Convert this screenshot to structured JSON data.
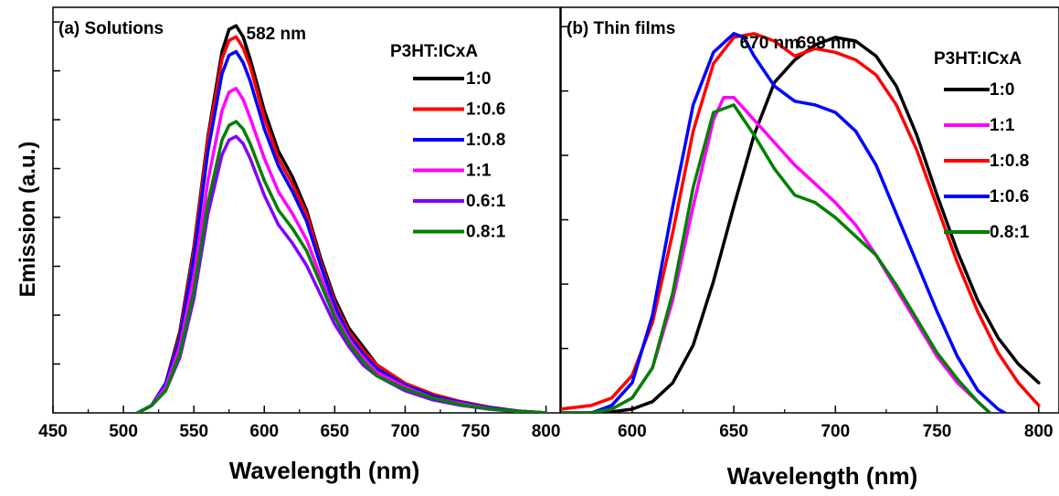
{
  "figure": {
    "ylabel": "Emission (a.u.)"
  },
  "chart_data": [
    {
      "type": "line",
      "title": "(a) Solutions",
      "xlabel": "Wavelength (nm)",
      "ylabel": "Emission (a.u.)",
      "xlim": [
        450,
        810
      ],
      "ylim": [
        0,
        1.1
      ],
      "xticks": [
        450,
        500,
        550,
        600,
        650,
        700,
        750,
        800
      ],
      "y_tick_labels_shown": false,
      "annotations": [
        {
          "text": "582 nm",
          "x": 582
        }
      ],
      "legend": {
        "title": "P3HT:ICxA",
        "placement": "top-right"
      },
      "series": [
        {
          "name": "1:0",
          "color": "#000000",
          "x": [
            510,
            520,
            530,
            540,
            550,
            560,
            570,
            575,
            580,
            585,
            590,
            600,
            610,
            620,
            630,
            640,
            650,
            660,
            670,
            680,
            700,
            720,
            740,
            760,
            780,
            800
          ],
          "y": [
            0.0,
            0.02,
            0.08,
            0.22,
            0.45,
            0.75,
            0.98,
            1.04,
            1.05,
            1.02,
            0.96,
            0.82,
            0.71,
            0.64,
            0.55,
            0.42,
            0.31,
            0.23,
            0.18,
            0.13,
            0.08,
            0.05,
            0.03,
            0.015,
            0.005,
            0.0
          ]
        },
        {
          "name": "1:0.6",
          "color": "#ff0000",
          "x": [
            510,
            520,
            530,
            540,
            550,
            560,
            570,
            575,
            580,
            585,
            590,
            600,
            610,
            620,
            630,
            640,
            650,
            660,
            670,
            680,
            700,
            720,
            740,
            760,
            780,
            800
          ],
          "y": [
            0.0,
            0.02,
            0.08,
            0.21,
            0.44,
            0.74,
            0.96,
            1.01,
            1.02,
            0.99,
            0.94,
            0.8,
            0.69,
            0.62,
            0.54,
            0.41,
            0.3,
            0.22,
            0.17,
            0.13,
            0.08,
            0.05,
            0.03,
            0.015,
            0.005,
            0.0
          ]
        },
        {
          "name": "1:0.8",
          "color": "#0000ff",
          "x": [
            510,
            520,
            530,
            540,
            550,
            560,
            570,
            575,
            580,
            585,
            590,
            600,
            610,
            620,
            630,
            640,
            650,
            660,
            670,
            680,
            700,
            720,
            740,
            760,
            780,
            800
          ],
          "y": [
            0.0,
            0.02,
            0.08,
            0.2,
            0.42,
            0.71,
            0.92,
            0.97,
            0.98,
            0.95,
            0.9,
            0.77,
            0.67,
            0.6,
            0.52,
            0.4,
            0.29,
            0.21,
            0.16,
            0.12,
            0.075,
            0.045,
            0.028,
            0.014,
            0.005,
            0.0
          ]
        },
        {
          "name": "1:1",
          "color": "#ff00ff",
          "x": [
            510,
            520,
            530,
            540,
            550,
            560,
            570,
            575,
            580,
            585,
            590,
            600,
            610,
            620,
            630,
            640,
            650,
            660,
            670,
            680,
            700,
            720,
            740,
            760,
            780,
            800
          ],
          "y": [
            0.0,
            0.02,
            0.07,
            0.18,
            0.37,
            0.63,
            0.82,
            0.87,
            0.88,
            0.85,
            0.8,
            0.69,
            0.6,
            0.54,
            0.47,
            0.37,
            0.27,
            0.2,
            0.15,
            0.11,
            0.07,
            0.04,
            0.025,
            0.012,
            0.004,
            0.0
          ]
        },
        {
          "name": "0.6:1",
          "color": "#8000ff",
          "x": [
            510,
            520,
            530,
            540,
            550,
            560,
            570,
            575,
            580,
            585,
            590,
            600,
            610,
            620,
            630,
            640,
            650,
            660,
            670,
            680,
            700,
            720,
            740,
            760,
            780,
            800
          ],
          "y": [
            0.0,
            0.02,
            0.06,
            0.15,
            0.31,
            0.54,
            0.7,
            0.74,
            0.75,
            0.73,
            0.69,
            0.59,
            0.51,
            0.46,
            0.4,
            0.32,
            0.24,
            0.18,
            0.13,
            0.1,
            0.06,
            0.035,
            0.02,
            0.01,
            0.004,
            0.0
          ]
        },
        {
          "name": "0.8:1",
          "color": "#008000",
          "x": [
            510,
            520,
            530,
            540,
            550,
            560,
            570,
            575,
            580,
            585,
            590,
            600,
            610,
            620,
            630,
            640,
            650,
            660,
            670,
            680,
            700,
            720,
            740,
            760,
            780,
            800
          ],
          "y": [
            0.0,
            0.02,
            0.06,
            0.16,
            0.33,
            0.57,
            0.74,
            0.78,
            0.79,
            0.77,
            0.73,
            0.63,
            0.55,
            0.5,
            0.44,
            0.35,
            0.26,
            0.19,
            0.14,
            0.1,
            0.065,
            0.04,
            0.022,
            0.011,
            0.004,
            0.0
          ]
        }
      ]
    },
    {
      "type": "line",
      "title": "(b) Thin films",
      "xlabel": "Wavelength (nm)",
      "ylabel": "",
      "xlim": [
        565,
        810
      ],
      "ylim": [
        0,
        1.08
      ],
      "xticks": [
        600,
        650,
        700,
        750,
        800
      ],
      "y_tick_labels_shown": false,
      "annotations": [
        {
          "text": "670 nm",
          "x": 670
        },
        {
          "text": "698 nm",
          "x": 698
        }
      ],
      "legend": {
        "title": "P3HT:ICxA",
        "placement": "top-right"
      },
      "series": [
        {
          "name": "1:0",
          "color": "#000000",
          "x": [
            580,
            590,
            600,
            610,
            620,
            630,
            640,
            650,
            660,
            670,
            680,
            690,
            700,
            710,
            720,
            730,
            740,
            750,
            760,
            770,
            780,
            790,
            800
          ],
          "y": [
            0.0,
            0.003,
            0.01,
            0.03,
            0.08,
            0.18,
            0.35,
            0.55,
            0.74,
            0.88,
            0.94,
            0.98,
            1.0,
            0.99,
            0.95,
            0.87,
            0.74,
            0.58,
            0.43,
            0.3,
            0.2,
            0.13,
            0.08
          ]
        },
        {
          "name": "1:1",
          "color": "#ff00ff",
          "x": [
            565,
            580,
            590,
            600,
            610,
            620,
            630,
            640,
            645,
            650,
            660,
            670,
            680,
            690,
            700,
            710,
            720,
            730,
            740,
            750,
            760,
            770,
            780
          ],
          "y": [
            0.0,
            0.0,
            0.01,
            0.04,
            0.12,
            0.3,
            0.55,
            0.78,
            0.84,
            0.84,
            0.78,
            0.72,
            0.66,
            0.61,
            0.56,
            0.5,
            0.42,
            0.33,
            0.24,
            0.15,
            0.08,
            0.03,
            -0.02
          ]
        },
        {
          "name": "1:0.8",
          "color": "#ff0000",
          "x": [
            565,
            580,
            590,
            600,
            610,
            620,
            630,
            640,
            650,
            660,
            670,
            680,
            690,
            700,
            710,
            720,
            730,
            740,
            750,
            760,
            770,
            780,
            790,
            800
          ],
          "y": [
            0.01,
            0.02,
            0.04,
            0.1,
            0.24,
            0.48,
            0.75,
            0.93,
            1.0,
            1.01,
            0.99,
            0.95,
            0.97,
            0.96,
            0.94,
            0.9,
            0.82,
            0.7,
            0.55,
            0.4,
            0.27,
            0.16,
            0.08,
            0.02
          ]
        },
        {
          "name": "1:0.6",
          "color": "#0000ff",
          "x": [
            565,
            580,
            590,
            600,
            610,
            620,
            630,
            640,
            650,
            655,
            660,
            670,
            680,
            690,
            700,
            710,
            720,
            730,
            740,
            750,
            760,
            770,
            780,
            790
          ],
          "y": [
            0.0,
            0.0,
            0.02,
            0.08,
            0.26,
            0.55,
            0.82,
            0.96,
            1.01,
            1.0,
            0.95,
            0.87,
            0.83,
            0.82,
            0.8,
            0.75,
            0.66,
            0.53,
            0.4,
            0.27,
            0.15,
            0.06,
            0.01,
            -0.02
          ]
        },
        {
          "name": "0.8:1",
          "color": "#008000",
          "x": [
            565,
            580,
            590,
            600,
            610,
            620,
            630,
            640,
            650,
            660,
            670,
            680,
            690,
            700,
            710,
            720,
            730,
            740,
            750,
            760,
            770,
            780
          ],
          "y": [
            0.0,
            0.0,
            0.01,
            0.04,
            0.12,
            0.32,
            0.6,
            0.8,
            0.82,
            0.74,
            0.65,
            0.58,
            0.56,
            0.52,
            0.47,
            0.42,
            0.34,
            0.25,
            0.16,
            0.09,
            0.03,
            -0.02
          ]
        }
      ]
    }
  ]
}
